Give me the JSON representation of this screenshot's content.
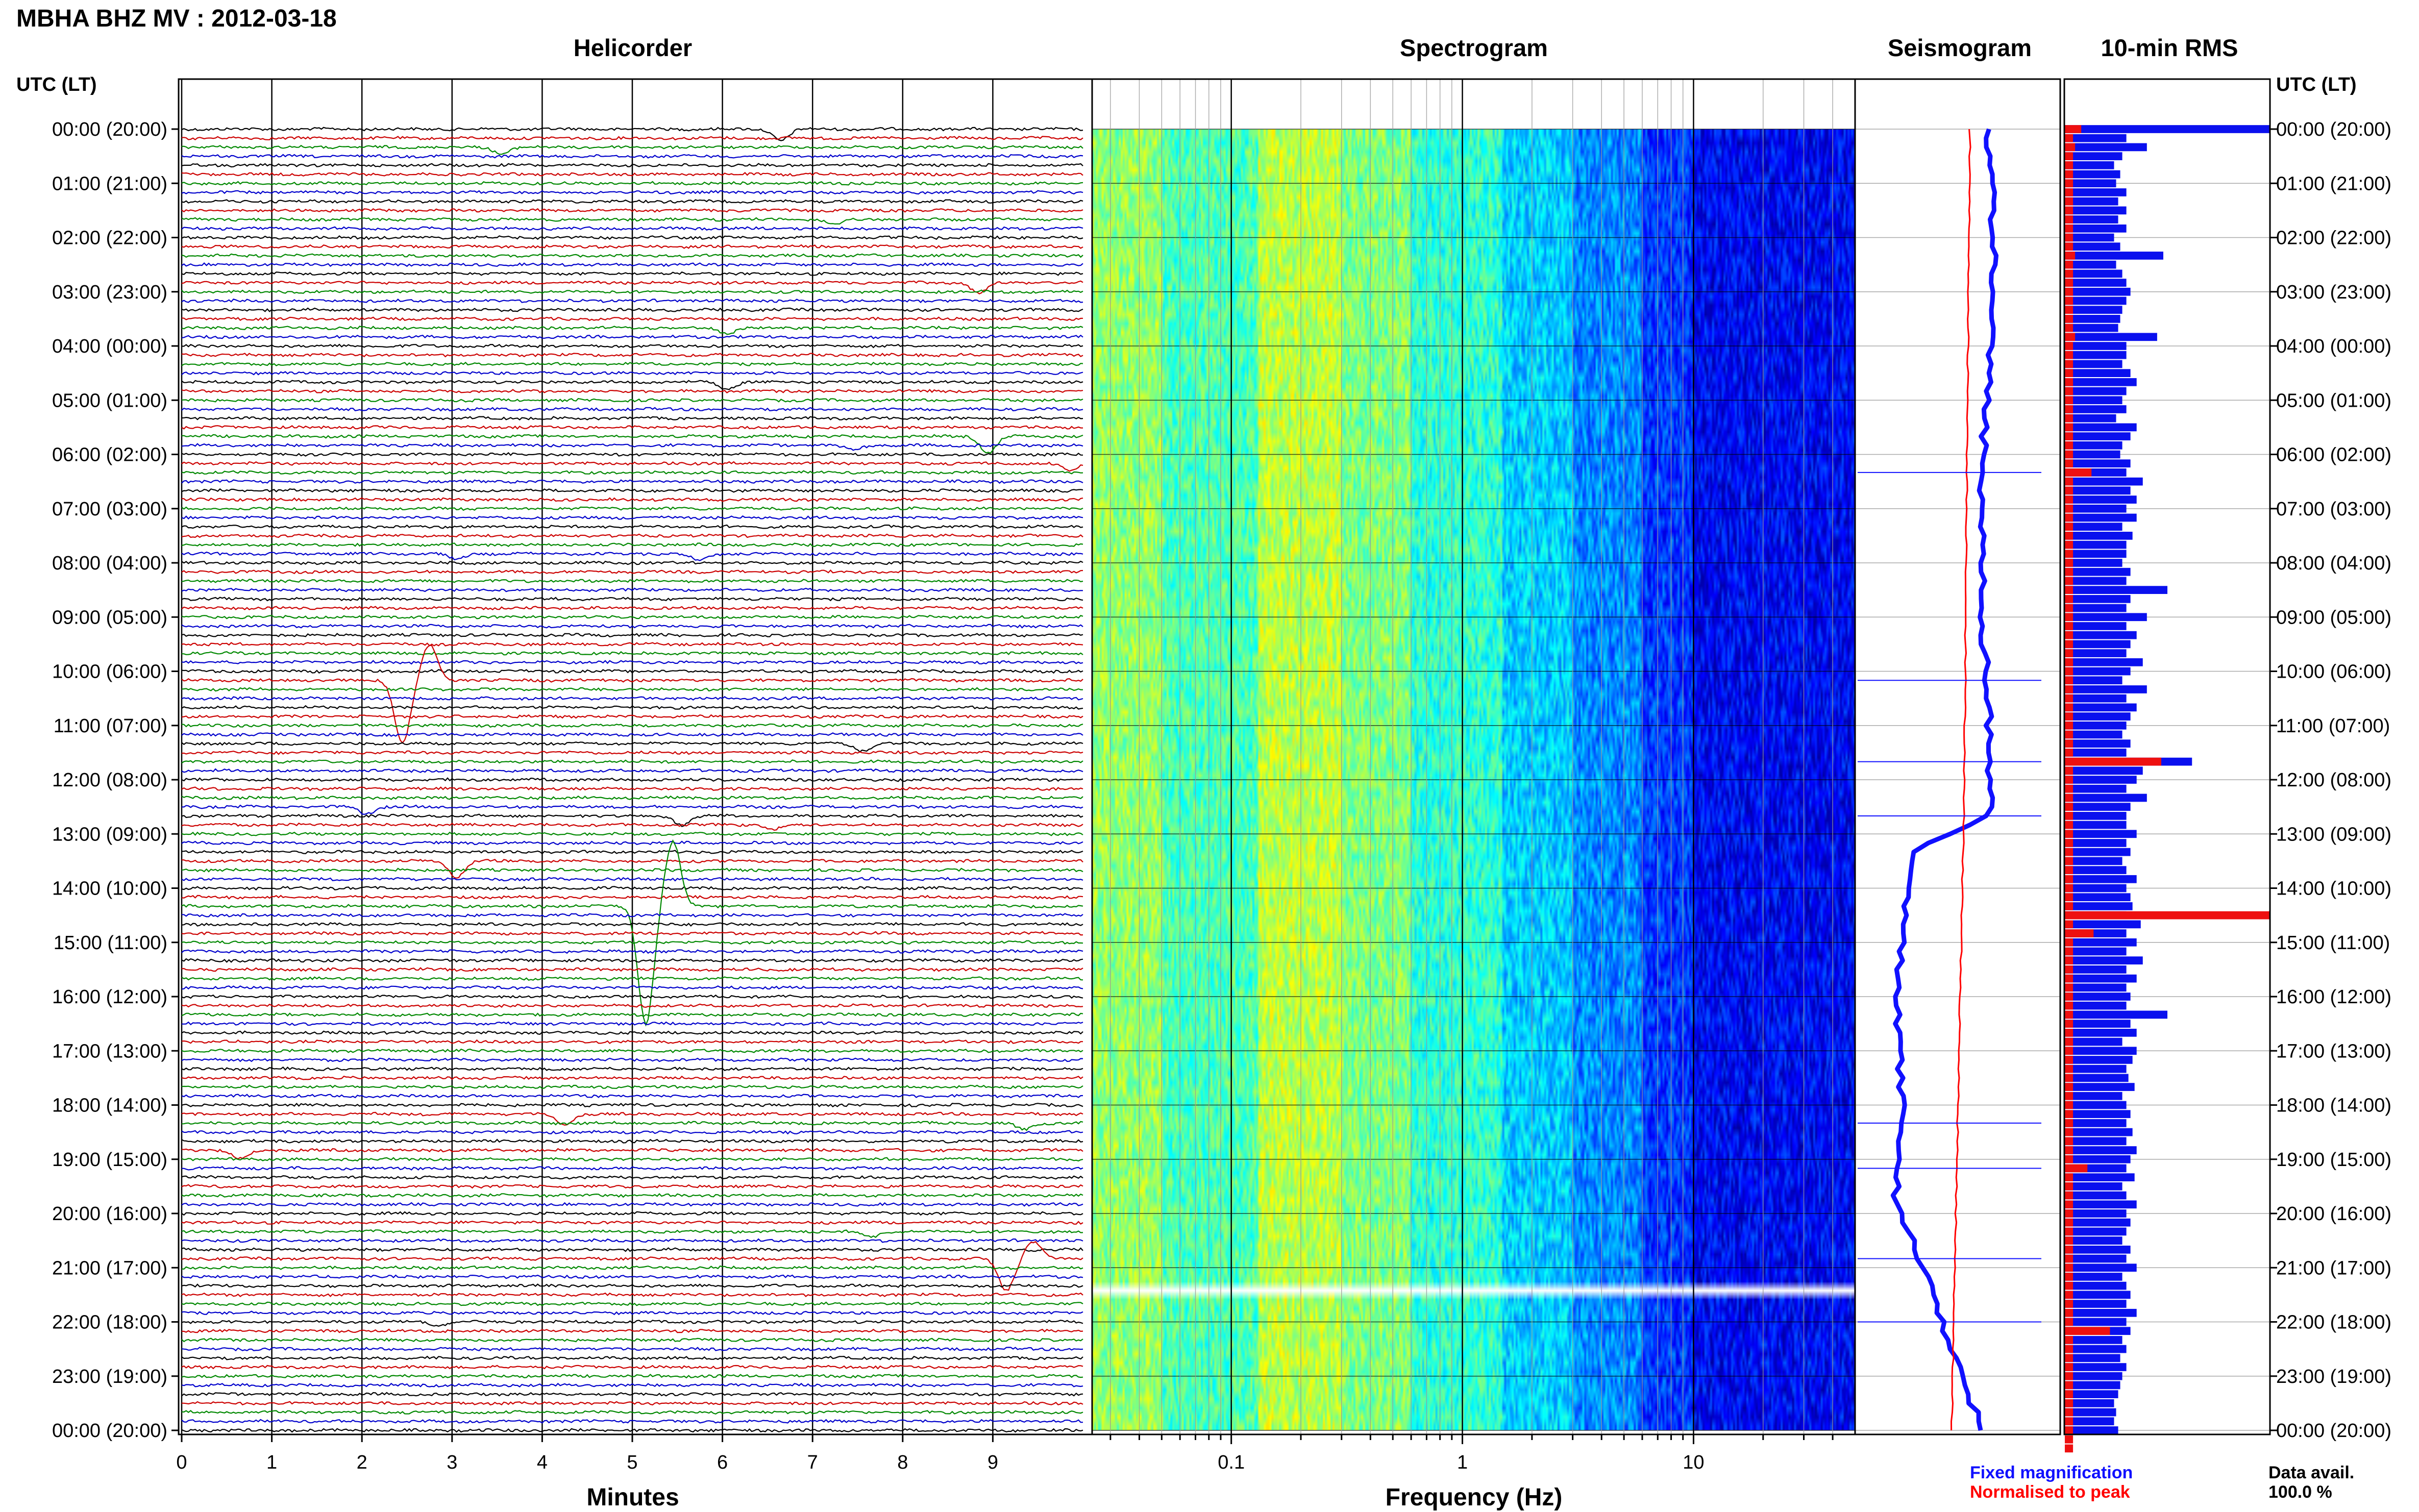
{
  "header": {
    "title": "MBHA BHZ MV : 2012-03-18",
    "utc_label": "UTC (LT)"
  },
  "panels": {
    "helicorder": "Helicorder",
    "spectrogram": "Spectrogram",
    "seismogram": "Seismogram",
    "rms": "10-min RMS"
  },
  "axes": {
    "helicorder_xlabel": "Minutes",
    "spectrogram_xlabel": "Frequency (Hz)"
  },
  "legend": {
    "fixed": "Fixed magnification",
    "normalised": "Normalised to peak",
    "fixed_color": "#1010ff",
    "normalised_color": "#ff0000"
  },
  "data_avail": {
    "label": "Data avail.",
    "value": "100.0 %"
  },
  "colors": {
    "trace_cycle": [
      "#000000",
      "#cc0000",
      "#008800",
      "#0000cc"
    ],
    "rms_blue": "#0a10ee",
    "rms_red": "#ee1010",
    "seis_blue": "#1010ff",
    "seis_red": "#ff0000"
  },
  "chart_data": [
    {
      "type": "line",
      "name": "helicorder",
      "title": "Helicorder",
      "xlabel": "Minutes",
      "xlim": [
        0,
        10
      ],
      "x_ticks": [
        "0",
        "1",
        "2",
        "3",
        "4",
        "5",
        "6",
        "7",
        "8",
        "9"
      ],
      "rows": 145,
      "row_minutes": 10,
      "time_labels": [
        "00:00 (20:00)",
        "01:00 (21:00)",
        "02:00 (22:00)",
        "03:00 (23:00)",
        "04:00 (00:00)",
        "05:00 (01:00)",
        "06:00 (02:00)",
        "07:00 (03:00)",
        "08:00 (04:00)",
        "09:00 (05:00)",
        "10:00 (06:00)",
        "11:00 (07:00)",
        "12:00 (08:00)",
        "13:00 (09:00)",
        "14:00 (10:00)",
        "15:00 (11:00)",
        "16:00 (12:00)",
        "17:00 (13:00)",
        "18:00 (14:00)",
        "19:00 (15:00)",
        "20:00 (16:00)",
        "21:00 (17:00)",
        "22:00 (18:00)",
        "23:00 (19:00)",
        "00:00 (20:00)"
      ],
      "events": [
        {
          "row": 0,
          "minute": 6.6,
          "amp": 1.4
        },
        {
          "row": 2,
          "minute": 3.5,
          "amp": 0.8
        },
        {
          "row": 10,
          "minute": 7.2,
          "amp": 0.7
        },
        {
          "row": 17,
          "minute": 8.8,
          "amp": 1.3
        },
        {
          "row": 22,
          "minute": 6.0,
          "amp": 0.7
        },
        {
          "row": 28,
          "minute": 6.0,
          "amp": 0.8
        },
        {
          "row": 34,
          "minute": 8.9,
          "amp": 2.0
        },
        {
          "row": 35,
          "minute": 7.4,
          "amp": 0.6
        },
        {
          "row": 37,
          "minute": 9.8,
          "amp": 0.9
        },
        {
          "row": 47,
          "minute": 3.0,
          "amp": 0.7
        },
        {
          "row": 47,
          "minute": 5.7,
          "amp": 0.8
        },
        {
          "row": 61,
          "minute": 2.4,
          "amp": 7.0
        },
        {
          "row": 68,
          "minute": 7.5,
          "amp": 0.9
        },
        {
          "row": 75,
          "minute": 2.0,
          "amp": 0.8
        },
        {
          "row": 76,
          "minute": 5.5,
          "amp": 1.1
        },
        {
          "row": 77,
          "minute": 6.5,
          "amp": 0.6
        },
        {
          "row": 81,
          "minute": 3.0,
          "amp": 2.0
        },
        {
          "row": 86,
          "minute": 5.1,
          "amp": 13.0
        },
        {
          "row": 109,
          "minute": 4.2,
          "amp": 1.4
        },
        {
          "row": 110,
          "minute": 9.3,
          "amp": 0.8
        },
        {
          "row": 113,
          "minute": 0.6,
          "amp": 1.0
        },
        {
          "row": 125,
          "minute": 9.1,
          "amp": 3.5
        },
        {
          "row": 122,
          "minute": 7.6,
          "amp": 0.7
        },
        {
          "row": 132,
          "minute": 2.8,
          "amp": 0.5
        }
      ]
    },
    {
      "type": "heatmap",
      "name": "spectrogram",
      "title": "Spectrogram",
      "xlabel": "Frequency (Hz)",
      "xscale": "log",
      "xlim": [
        0.025,
        50
      ],
      "x_ticks": [
        "0.1",
        "1",
        "10"
      ]
    },
    {
      "type": "line",
      "name": "seismogram",
      "title": "Seismogram",
      "series": [
        "Fixed magnification",
        "Normalised to peak"
      ]
    },
    {
      "type": "bar",
      "name": "rms",
      "title": "10-min RMS",
      "orientation": "horizontal",
      "rows": 145,
      "row_minutes": 10,
      "series": [
        "Fixed magnification",
        "Normalised to peak"
      ],
      "fixed_values": [
        1.0,
        0.3,
        0.4,
        0.28,
        0.24,
        0.27,
        0.25,
        0.3,
        0.26,
        0.3,
        0.26,
        0.3,
        0.24,
        0.27,
        0.48,
        0.25,
        0.28,
        0.3,
        0.32,
        0.3,
        0.28,
        0.27,
        0.26,
        0.45,
        0.3,
        0.3,
        0.28,
        0.32,
        0.35,
        0.3,
        0.28,
        0.3,
        0.25,
        0.35,
        0.32,
        0.28,
        0.27,
        0.32,
        0.3,
        0.38,
        0.32,
        0.35,
        0.3,
        0.35,
        0.28,
        0.33,
        0.3,
        0.3,
        0.28,
        0.32,
        0.3,
        0.5,
        0.32,
        0.3,
        0.4,
        0.3,
        0.35,
        0.32,
        0.3,
        0.38,
        0.32,
        0.28,
        0.4,
        0.3,
        0.35,
        0.32,
        0.3,
        0.28,
        0.32,
        0.3,
        0.62,
        0.38,
        0.35,
        0.3,
        0.4,
        0.32,
        0.3,
        0.3,
        0.35,
        0.3,
        0.32,
        0.28,
        0.3,
        0.35,
        0.3,
        0.32,
        0.33,
        0.3,
        0.37,
        0.3,
        0.35,
        0.3,
        0.38,
        0.3,
        0.35,
        0.3,
        0.32,
        0.3,
        0.5,
        0.32,
        0.35,
        0.28,
        0.35,
        0.33,
        0.3,
        0.31,
        0.34,
        0.28,
        0.3,
        0.32,
        0.3,
        0.33,
        0.3,
        0.35,
        0.32,
        0.3,
        0.34,
        0.28,
        0.3,
        0.35,
        0.3,
        0.32,
        0.3,
        0.28,
        0.32,
        0.3,
        0.35,
        0.28,
        0.3,
        0.32,
        0.3,
        0.35,
        0.3,
        0.32,
        0.28,
        0.3,
        0.27,
        0.3,
        0.28,
        0.27,
        0.26,
        0.24,
        0.25,
        0.24,
        0.26
      ],
      "normalised_values": [
        0.08,
        0.04,
        0.05,
        0.04,
        0.04,
        0.04,
        0.04,
        0.04,
        0.04,
        0.04,
        0.04,
        0.04,
        0.04,
        0.04,
        0.05,
        0.04,
        0.04,
        0.04,
        0.04,
        0.04,
        0.04,
        0.04,
        0.04,
        0.05,
        0.04,
        0.04,
        0.04,
        0.04,
        0.04,
        0.04,
        0.04,
        0.04,
        0.04,
        0.04,
        0.04,
        0.04,
        0.04,
        0.04,
        0.13,
        0.04,
        0.04,
        0.04,
        0.04,
        0.04,
        0.04,
        0.04,
        0.04,
        0.04,
        0.04,
        0.04,
        0.04,
        0.04,
        0.04,
        0.04,
        0.04,
        0.04,
        0.04,
        0.04,
        0.04,
        0.04,
        0.04,
        0.04,
        0.04,
        0.04,
        0.04,
        0.04,
        0.04,
        0.04,
        0.04,
        0.04,
        0.47,
        0.04,
        0.04,
        0.04,
        0.04,
        0.04,
        0.04,
        0.04,
        0.04,
        0.04,
        0.04,
        0.04,
        0.04,
        0.04,
        0.04,
        0.04,
        0.04,
        1.0,
        0.04,
        0.14,
        0.04,
        0.04,
        0.04,
        0.04,
        0.04,
        0.04,
        0.04,
        0.04,
        0.04,
        0.04,
        0.04,
        0.04,
        0.04,
        0.04,
        0.04,
        0.04,
        0.04,
        0.04,
        0.04,
        0.04,
        0.04,
        0.04,
        0.04,
        0.04,
        0.04,
        0.11,
        0.04,
        0.04,
        0.04,
        0.04,
        0.04,
        0.04,
        0.04,
        0.04,
        0.04,
        0.04,
        0.04,
        0.04,
        0.04,
        0.04,
        0.04,
        0.04,
        0.04,
        0.22,
        0.04,
        0.04,
        0.04,
        0.04,
        0.04,
        0.04,
        0.04,
        0.04,
        0.04,
        0.04,
        0.04,
        0.04,
        0.04
      ]
    }
  ]
}
